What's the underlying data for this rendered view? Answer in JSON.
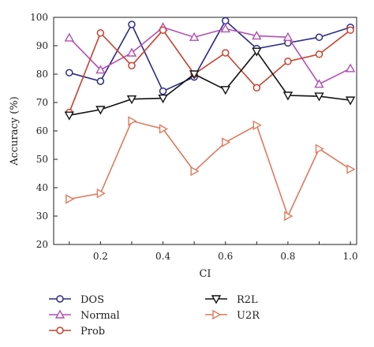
{
  "chart_data": {
    "type": "line",
    "title": "",
    "xlabel": "CI",
    "ylabel": "Accuracy (%)",
    "x": [
      0.1,
      0.2,
      0.3,
      0.4,
      0.5,
      0.6,
      0.7,
      0.8,
      0.9,
      1.0
    ],
    "xticks": [
      "0.2",
      "0.4",
      "0.6",
      "0.8",
      "1.0"
    ],
    "yticks": [
      "20",
      "30",
      "40",
      "50",
      "60",
      "70",
      "80",
      "90",
      "100"
    ],
    "xlim": [
      0.05,
      1.02
    ],
    "ylim": [
      20,
      100
    ],
    "grid": false,
    "legend_position": "bottom",
    "series": [
      {
        "name": "DOS",
        "color": "#2b2a8a",
        "marker": "circle",
        "values": [
          80.5,
          77.5,
          97.5,
          74.0,
          79.0,
          98.8,
          89.0,
          91.0,
          93.0,
          96.5
        ]
      },
      {
        "name": "Normal",
        "color": "#b34fb3",
        "marker": "triangle-up",
        "values": [
          92.8,
          81.5,
          87.5,
          96.5,
          93.0,
          96.0,
          93.5,
          93.0,
          76.5,
          82.0
        ]
      },
      {
        "name": "Prob",
        "color": "#c8402e",
        "marker": "circle",
        "values": [
          66.5,
          94.5,
          83.0,
          95.5,
          80.0,
          87.5,
          75.2,
          84.5,
          87.0,
          95.5
        ]
      },
      {
        "name": "R2L",
        "color": "#111111",
        "marker": "triangle-down",
        "values": [
          65.5,
          67.5,
          71.2,
          71.5,
          80.0,
          74.5,
          88.0,
          72.5,
          72.2,
          70.8
        ]
      },
      {
        "name": "U2R",
        "color": "#de7a5c",
        "marker": "triangle-right",
        "values": [
          36.0,
          38.0,
          63.5,
          60.7,
          45.8,
          56.0,
          62.0,
          30.0,
          53.7,
          46.5
        ]
      }
    ]
  }
}
